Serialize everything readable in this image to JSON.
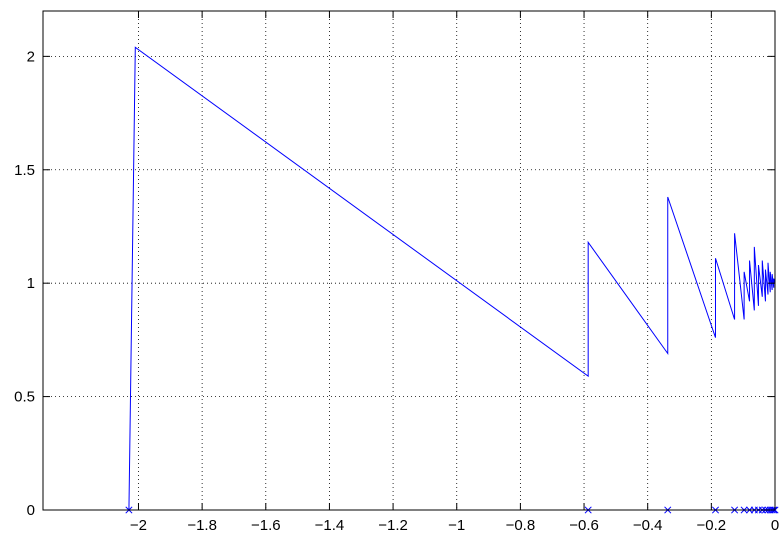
{
  "chart_data": {
    "type": "line",
    "title": "",
    "xlabel": "",
    "ylabel": "",
    "xlim": [
      -2.3,
      0
    ],
    "ylim": [
      0,
      2.2
    ],
    "grid": true,
    "legend": "none",
    "colors": {
      "line": "#0000ff",
      "axes": "#000000",
      "background": "#ffffff"
    },
    "xticks": [
      -2,
      -1.8,
      -1.6,
      -1.4,
      -1.2,
      -1,
      -0.8,
      -0.6,
      -0.4,
      -0.2,
      0
    ],
    "xtick_labels": [
      "−2",
      "−1.8",
      "−1.6",
      "−1.4",
      "−1.2",
      "−1",
      "−0.8",
      "−0.6",
      "−0.4",
      "−0.2",
      "0"
    ],
    "yticks": [
      0,
      0.5,
      1,
      1.5,
      2
    ],
    "ytick_labels": [
      "0",
      "0.5",
      "1",
      "1.5",
      "2"
    ],
    "series": [
      {
        "style": "line",
        "x": [
          -2.03,
          -2.01,
          -0.587,
          -0.587,
          -0.337,
          -0.337,
          -0.187,
          -0.187,
          -0.127,
          -0.127,
          -0.097,
          -0.097,
          -0.08,
          -0.08,
          -0.065,
          -0.065,
          -0.052,
          -0.052,
          -0.04,
          -0.04,
          -0.03,
          -0.03,
          -0.022,
          -0.022,
          -0.015,
          -0.015,
          -0.009,
          -0.009,
          -0.004,
          -0.004,
          0
        ],
        "y": [
          0,
          2.04,
          0.59,
          1.18,
          0.69,
          1.38,
          0.76,
          1.11,
          0.84,
          1.22,
          0.84,
          1.05,
          0.92,
          1.1,
          0.88,
          1.16,
          0.9,
          1.08,
          0.94,
          1.1,
          0.92,
          1.06,
          0.95,
          1.09,
          0.96,
          1.05,
          0.97,
          1.04,
          0.98,
          1.02,
          1.0
        ]
      },
      {
        "style": "marker-x",
        "x": [
          -2.03,
          -0.587,
          -0.337,
          -0.187,
          -0.127,
          -0.097,
          -0.08,
          -0.065,
          -0.052,
          -0.04,
          -0.03,
          -0.022,
          -0.015,
          -0.009,
          -0.004,
          0
        ],
        "y": [
          0,
          0,
          0,
          0,
          0,
          0,
          0,
          0,
          0,
          0,
          0,
          0,
          0,
          0,
          0,
          0
        ]
      }
    ]
  }
}
